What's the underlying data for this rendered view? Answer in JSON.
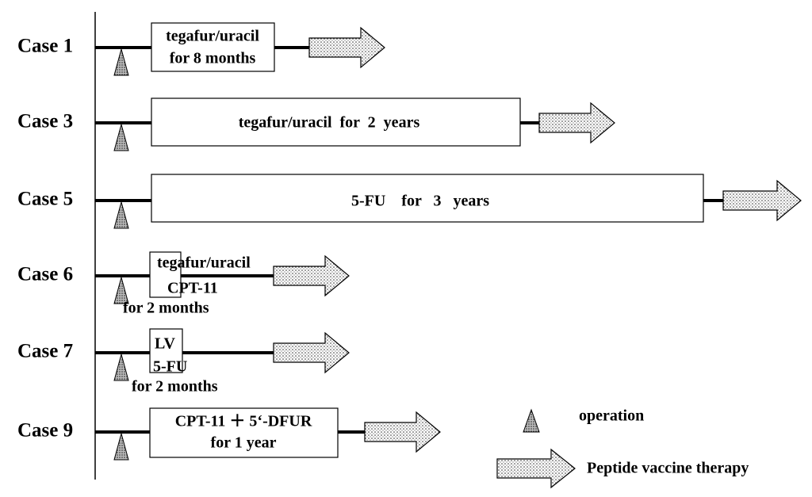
{
  "cases": [
    {
      "label": "Case 1",
      "treatment": [
        "tegafur/uracil",
        "for 8 months"
      ]
    },
    {
      "label": "Case 3",
      "treatment": [
        "tegafur/uracil  for  2  years"
      ]
    },
    {
      "label": "Case 5",
      "treatment": [
        "5-FU    for   3   years"
      ]
    },
    {
      "label": "Case 6",
      "treatment": [
        "tegafur/uracil",
        "CPT-11",
        "for 2 months"
      ]
    },
    {
      "label": "Case 7",
      "treatment": [
        "LV",
        "5-FU",
        "for 2 months"
      ]
    },
    {
      "label": "Case 9",
      "treatment": [
        "CPT-11 ＋ 5‘-DFUR",
        "for 1 year"
      ]
    }
  ],
  "legend": {
    "operation": "operation",
    "vaccine": "Peptide vaccine therapy"
  }
}
